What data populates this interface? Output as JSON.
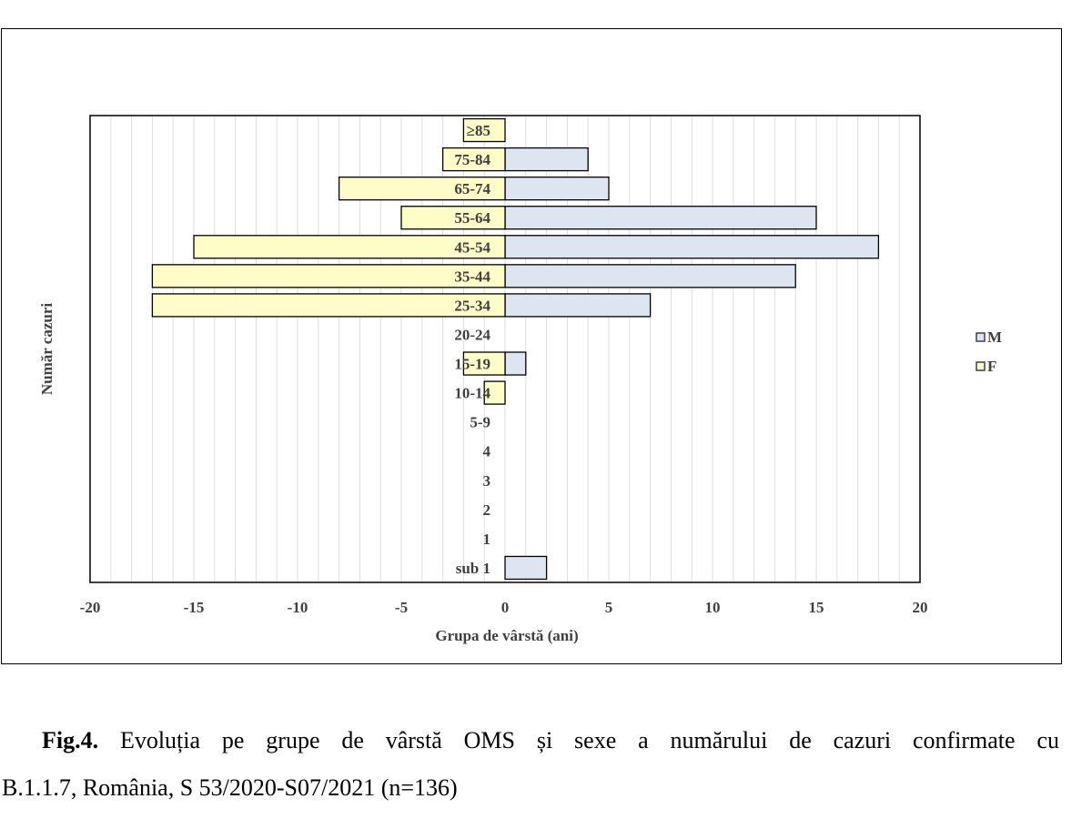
{
  "chart_data": {
    "type": "bar",
    "orientation": "horizontal",
    "title": "",
    "xlabel": "Grupa de vârstă (ani)",
    "ylabel": "Număr cazuri",
    "xlim": [
      -20,
      20
    ],
    "xticks": [
      "-20",
      "-15",
      "-10",
      "-5",
      "0",
      "5",
      "10",
      "15",
      "20"
    ],
    "categories": [
      "sub 1",
      "1",
      "2",
      "3",
      "4",
      "5-9",
      "10-14",
      "15-19",
      "20-24",
      "25-34",
      "35-44",
      "45-54",
      "55-64",
      "65-74",
      "75-84",
      "≥85"
    ],
    "series": [
      {
        "name": "M",
        "color": "#dde5f1",
        "values": [
          2,
          0,
          0,
          0,
          0,
          0,
          0,
          1,
          0,
          7,
          14,
          18,
          15,
          5,
          4,
          0
        ]
      },
      {
        "name": "F",
        "color": "#fefdc8",
        "values": [
          0,
          0,
          0,
          0,
          0,
          0,
          -1,
          -2,
          0,
          -17,
          -17,
          -15,
          -5,
          -8,
          -3,
          -2
        ]
      }
    ],
    "grid": true,
    "legend": "right"
  },
  "caption": {
    "label": "Fig.4.",
    "text_line1": [
      "Evoluția",
      "pe",
      "grupe",
      "de",
      "vârstă",
      "OMS",
      "și",
      "sexe",
      "a",
      "numărului",
      "de",
      "cazuri",
      "confirmate",
      "cu"
    ],
    "text_line2": "B.1.1.7, România, S 53/2020-S07/2021 (n=136)"
  }
}
